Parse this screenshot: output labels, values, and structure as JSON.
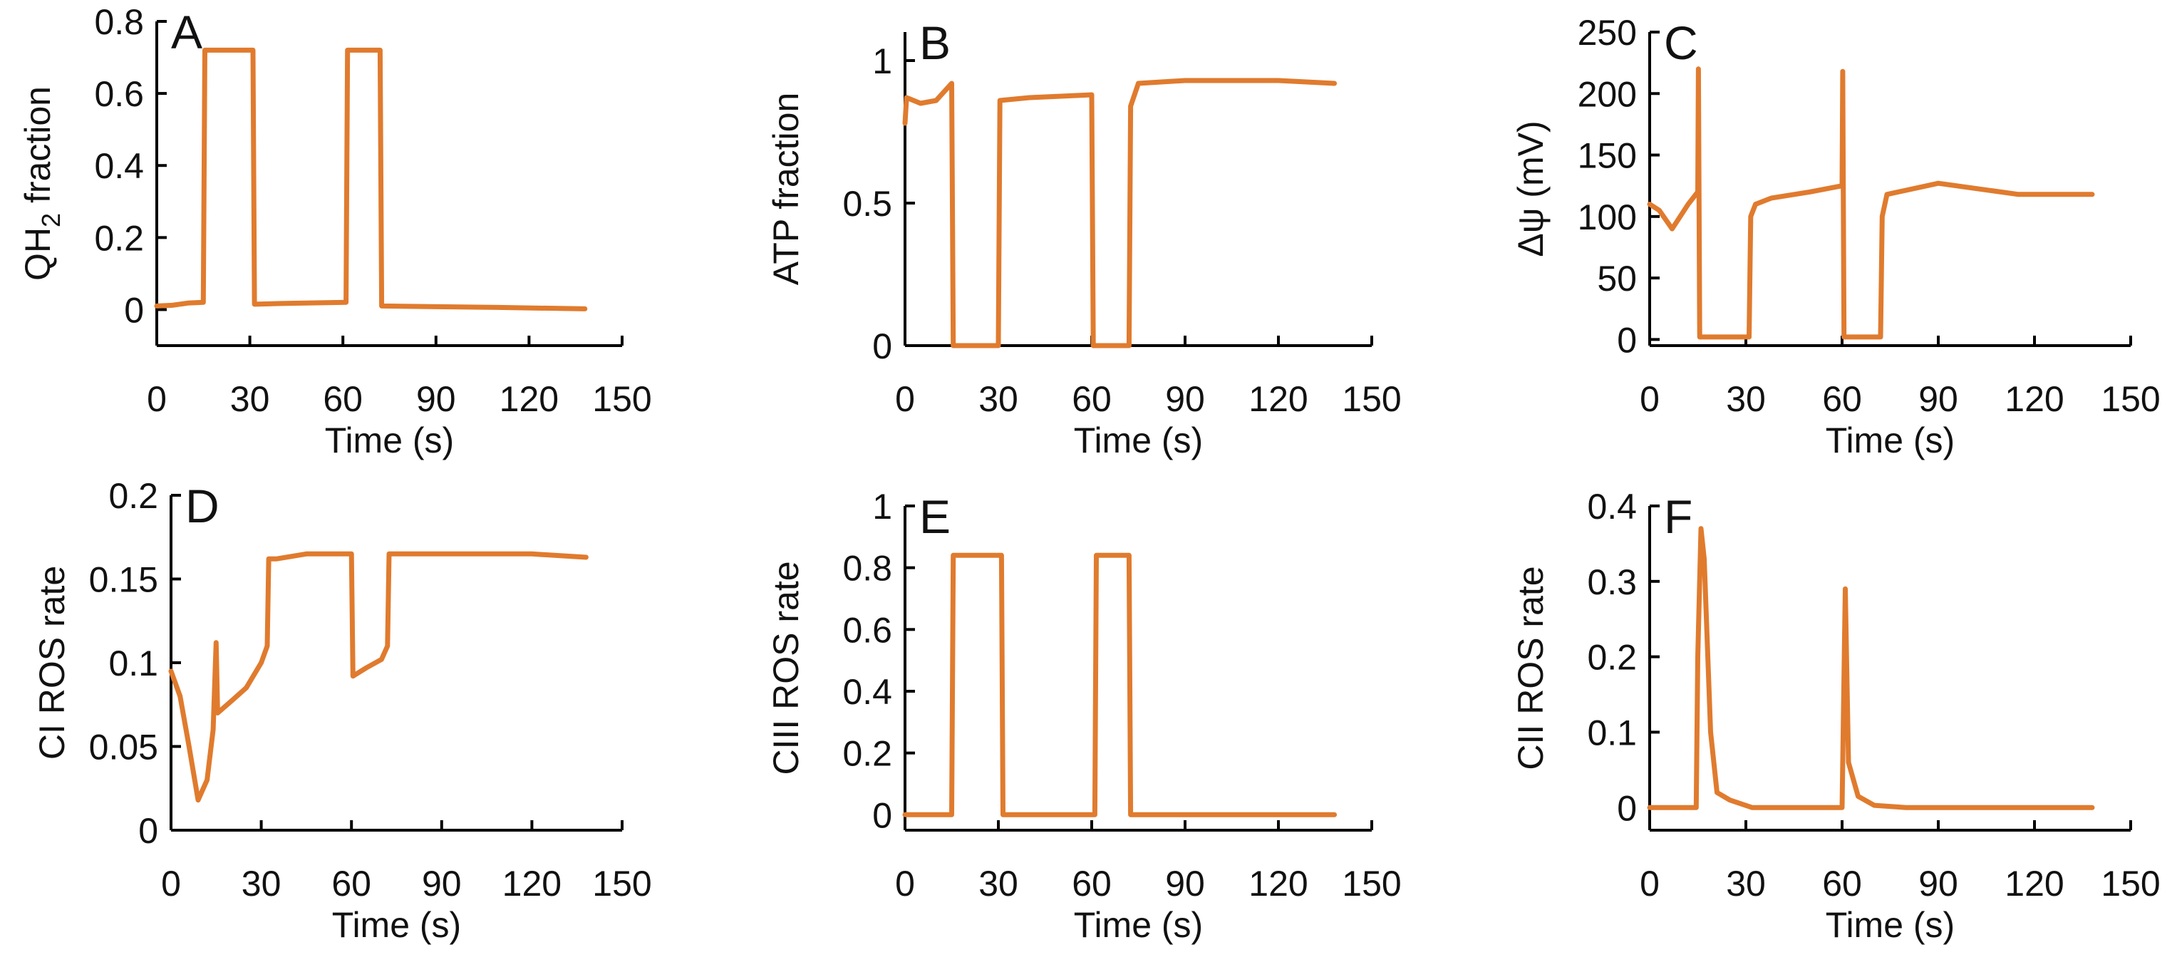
{
  "figure": {
    "description_free": true
  },
  "colors": {
    "series": "#E07B2E",
    "axis": "#000000"
  },
  "chart_data": [
    {
      "panel": "A",
      "type": "line",
      "title": "",
      "xlabel": "Time (s)",
      "ylabel": "QH",
      "ylabel_sub": "2",
      "ylabel_tail": " fraction",
      "xlim": [
        0,
        150
      ],
      "ylim": [
        -0.1,
        0.8
      ],
      "xticks": [
        0,
        30,
        60,
        90,
        120,
        150
      ],
      "yticks": [
        0,
        0.2,
        0.4,
        0.6,
        0.8
      ],
      "xtick_labels": [
        "0",
        "30",
        "60",
        "90",
        "120",
        "150"
      ],
      "ytick_labels": [
        "0",
        "0.2",
        "0.4",
        "0.6",
        "0.8"
      ],
      "series": [
        {
          "name": "QH2 fraction",
          "x": [
            0,
            5,
            10,
            15,
            15.5,
            31,
            31.5,
            40,
            61,
            61.5,
            72,
            72.5,
            90,
            110,
            138
          ],
          "y": [
            0.01,
            0.012,
            0.018,
            0.02,
            0.72,
            0.72,
            0.015,
            0.017,
            0.02,
            0.72,
            0.72,
            0.01,
            0.008,
            0.006,
            0.002
          ]
        }
      ]
    },
    {
      "panel": "B",
      "type": "line",
      "title": "",
      "xlabel": "Time (s)",
      "ylabel": "ATP fraction",
      "xlim": [
        0,
        150
      ],
      "ylim": [
        0,
        1.1
      ],
      "xticks": [
        0,
        30,
        60,
        90,
        120,
        150
      ],
      "yticks": [
        0,
        0.5,
        1
      ],
      "xtick_labels": [
        "0",
        "30",
        "60",
        "90",
        "120",
        "150"
      ],
      "ytick_labels": [
        "0",
        "0.5",
        "1"
      ],
      "series": [
        {
          "name": "ATP fraction",
          "x": [
            0,
            0.5,
            5,
            10,
            15,
            15.5,
            30,
            30.5,
            40,
            60,
            60.5,
            72,
            72.5,
            75,
            90,
            120,
            138
          ],
          "y": [
            0.78,
            0.87,
            0.85,
            0.86,
            0.92,
            0,
            0,
            0.86,
            0.87,
            0.88,
            0,
            0,
            0.84,
            0.92,
            0.93,
            0.93,
            0.92
          ]
        }
      ]
    },
    {
      "panel": "C",
      "type": "line",
      "title": "",
      "xlabel": "Time (s)",
      "ylabel": "Δψ (mV)",
      "xlim": [
        0,
        150
      ],
      "ylim": [
        -5,
        250
      ],
      "xticks": [
        0,
        30,
        60,
        90,
        120,
        150
      ],
      "yticks": [
        0,
        50,
        100,
        150,
        200,
        250
      ],
      "xtick_labels": [
        "0",
        "30",
        "60",
        "90",
        "120",
        "150"
      ],
      "ytick_labels": [
        "0",
        "50",
        "100",
        "150",
        "200",
        "250"
      ],
      "series": [
        {
          "name": "Δψ",
          "x": [
            0,
            3,
            7,
            12,
            15,
            15.2,
            15.6,
            31,
            31.5,
            33,
            38,
            50,
            60,
            60.2,
            60.6,
            72,
            72.5,
            74,
            90,
            115,
            138
          ],
          "y": [
            110,
            105,
            90,
            110,
            120,
            220,
            2,
            2,
            100,
            110,
            115,
            120,
            125,
            218,
            2,
            2,
            100,
            118,
            127,
            118,
            118
          ]
        }
      ]
    },
    {
      "panel": "D",
      "type": "line",
      "title": "",
      "xlabel": "Time (s)",
      "ylabel": "CI ROS rate",
      "xlim": [
        0,
        150
      ],
      "ylim": [
        0,
        0.2
      ],
      "xticks": [
        0,
        30,
        60,
        90,
        120,
        150
      ],
      "yticks": [
        0,
        0.05,
        0.1,
        0.15,
        0.2
      ],
      "xtick_labels": [
        "0",
        "30",
        "60",
        "90",
        "120",
        "150"
      ],
      "ytick_labels": [
        "0",
        "0.05",
        "0.1",
        "0.15",
        "0.2"
      ],
      "series": [
        {
          "name": "CI ROS rate",
          "x": [
            0,
            3,
            6,
            9,
            12,
            14,
            15,
            15.5,
            20,
            25,
            30,
            32,
            32.5,
            35,
            45,
            60,
            60.5,
            65,
            70,
            72,
            72.5,
            80,
            120,
            138
          ],
          "y": [
            0.095,
            0.08,
            0.05,
            0.018,
            0.03,
            0.06,
            0.112,
            0.07,
            0.077,
            0.085,
            0.1,
            0.11,
            0.162,
            0.162,
            0.165,
            0.165,
            0.092,
            0.097,
            0.102,
            0.11,
            0.165,
            0.165,
            0.165,
            0.163
          ]
        }
      ]
    },
    {
      "panel": "E",
      "type": "line",
      "title": "",
      "xlabel": "Time (s)",
      "ylabel": "CIII ROS rate",
      "xlim": [
        0,
        150
      ],
      "ylim": [
        -0.05,
        1
      ],
      "xticks": [
        0,
        30,
        60,
        90,
        120,
        150
      ],
      "yticks": [
        0,
        0.2,
        0.4,
        0.6,
        0.8,
        1
      ],
      "xtick_labels": [
        "0",
        "30",
        "60",
        "90",
        "120",
        "150"
      ],
      "ytick_labels": [
        "0",
        "0.2",
        "0.4",
        "0.6",
        "0.8",
        "1"
      ],
      "series": [
        {
          "name": "CIII ROS rate",
          "x": [
            0,
            15,
            15.5,
            31,
            31.5,
            61,
            61.5,
            72,
            72.5,
            138
          ],
          "y": [
            0,
            0,
            0.84,
            0.84,
            0,
            0,
            0.84,
            0.84,
            0,
            0
          ]
        }
      ]
    },
    {
      "panel": "F",
      "type": "line",
      "title": "",
      "xlabel": "Time (s)",
      "ylabel": "CII ROS rate",
      "xlim": [
        0,
        150
      ],
      "ylim": [
        -0.03,
        0.4
      ],
      "xticks": [
        0,
        30,
        60,
        90,
        120,
        150
      ],
      "yticks": [
        0,
        0.1,
        0.2,
        0.3,
        0.4
      ],
      "xtick_labels": [
        "0",
        "30",
        "60",
        "90",
        "120",
        "150"
      ],
      "ytick_labels": [
        "0",
        "0.1",
        "0.2",
        "0.3",
        "0.4"
      ],
      "series": [
        {
          "name": "CII ROS rate",
          "x": [
            0,
            14.5,
            15,
            16,
            17,
            19,
            21,
            25,
            32,
            60,
            61,
            62,
            65,
            70,
            80,
            138
          ],
          "y": [
            0,
            0,
            0.2,
            0.37,
            0.33,
            0.1,
            0.02,
            0.01,
            0,
            0,
            0.29,
            0.06,
            0.015,
            0.003,
            0,
            0
          ]
        }
      ]
    }
  ]
}
